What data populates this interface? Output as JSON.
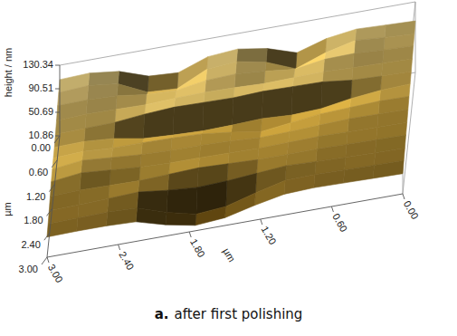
{
  "chart_data": {
    "type": "surface",
    "caption_label": "a.",
    "caption": "after first polishing",
    "z_label": "height / nm",
    "x_label": "µm",
    "y_label": "µm",
    "x": [
      0,
      0.25,
      0.5,
      0.75,
      1,
      1.25,
      1.5,
      1.75,
      2,
      2.25,
      2.5,
      2.75,
      3
    ],
    "y": [
      0,
      0.25,
      0.5,
      0.75,
      1,
      1.25,
      1.5,
      1.75,
      2,
      2.25,
      2.5,
      2.75,
      3
    ],
    "z": [
      [
        98,
        100,
        102,
        95,
        80,
        96,
        104,
        100,
        82,
        85,
        102,
        108,
        106
      ],
      [
        93,
        96,
        100,
        88,
        70,
        90,
        100,
        96,
        72,
        75,
        98,
        104,
        101
      ],
      [
        90,
        92,
        95,
        94,
        86,
        92,
        96,
        94,
        86,
        88,
        95,
        97,
        96
      ],
      [
        85,
        87,
        88,
        90,
        89,
        88,
        90,
        91,
        90,
        88,
        89,
        90,
        88
      ],
      [
        81,
        82,
        84,
        90,
        91,
        92,
        90,
        91,
        92,
        89,
        84,
        83,
        82
      ],
      [
        77,
        75,
        70,
        62,
        60,
        63,
        61,
        60,
        62,
        65,
        74,
        78,
        77
      ],
      [
        73,
        74,
        72,
        70,
        64,
        58,
        66,
        72,
        74,
        75,
        75,
        78,
        76
      ],
      [
        68,
        69,
        70,
        68,
        66,
        65,
        68,
        70,
        70,
        72,
        76,
        80,
        74
      ],
      [
        63,
        64,
        65,
        66,
        65,
        64,
        65,
        66,
        66,
        68,
        72,
        76,
        70
      ],
      [
        59,
        60,
        61,
        62,
        62,
        62,
        64,
        66,
        64,
        62,
        63,
        64,
        62
      ],
      [
        54,
        55,
        56,
        58,
        60,
        56,
        52,
        50,
        54,
        60,
        58,
        56,
        55
      ],
      [
        50,
        51,
        52,
        53,
        52,
        40,
        26,
        22,
        34,
        50,
        52,
        51,
        50
      ],
      [
        45,
        46,
        47,
        48,
        46,
        36,
        24,
        20,
        30,
        44,
        46,
        46,
        45
      ]
    ],
    "xlim": [
      0,
      3
    ],
    "ylim": [
      0,
      3
    ],
    "zlim": [
      10.86,
      130.34
    ],
    "xticks": [
      {
        "value": 0,
        "label": "0.00"
      },
      {
        "value": 0.6,
        "label": "0.60"
      },
      {
        "value": 1.2,
        "label": "1.20"
      },
      {
        "value": 1.8,
        "label": "1.80"
      },
      {
        "value": 2.4,
        "label": "2.40"
      },
      {
        "value": 3,
        "label": "3.00"
      }
    ],
    "yticks": [
      {
        "value": 0,
        "label": "0.00"
      },
      {
        "value": 0.6,
        "label": "0.60"
      },
      {
        "value": 1.2,
        "label": "1.20"
      },
      {
        "value": 1.8,
        "label": "1.80"
      },
      {
        "value": 2.4,
        "label": "2.40"
      },
      {
        "value": 3,
        "label": "3.00"
      }
    ],
    "zticks": [
      10.86,
      50.69,
      90.51,
      130.34
    ]
  }
}
